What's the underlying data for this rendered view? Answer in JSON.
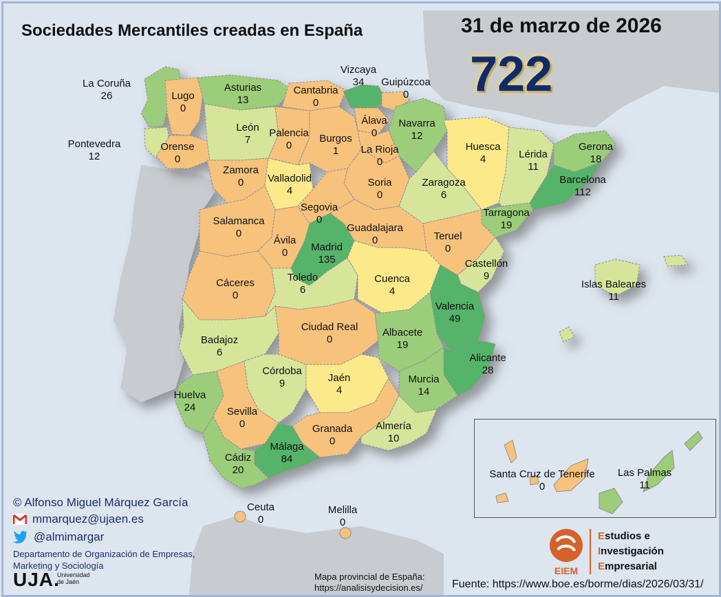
{
  "title": "Sociedades Mercantiles creadas en España",
  "date": "31 de marzo de 2026",
  "total": "722",
  "provinces": [
    {
      "name": "La Coruña",
      "value": "26"
    },
    {
      "name": "Lugo",
      "value": "0"
    },
    {
      "name": "Asturias",
      "value": "13"
    },
    {
      "name": "Cantabria",
      "value": "0"
    },
    {
      "name": "Vizcaya",
      "value": "34"
    },
    {
      "name": "Guipúzcoa",
      "value": "0"
    },
    {
      "name": "Pontevedra",
      "value": "12"
    },
    {
      "name": "León",
      "value": "7"
    },
    {
      "name": "Palencia",
      "value": "0"
    },
    {
      "name": "Burgos",
      "value": "1"
    },
    {
      "name": "Álava",
      "value": "0"
    },
    {
      "name": "Navarra",
      "value": "12"
    },
    {
      "name": "Orense",
      "value": "0"
    },
    {
      "name": "La Rioja",
      "value": "0"
    },
    {
      "name": "Huesca",
      "value": "4"
    },
    {
      "name": "Lérida",
      "value": "11"
    },
    {
      "name": "Gerona",
      "value": "18"
    },
    {
      "name": "Zamora",
      "value": "0"
    },
    {
      "name": "Valladolid",
      "value": "4"
    },
    {
      "name": "Soria",
      "value": "0"
    },
    {
      "name": "Zaragoza",
      "value": "6"
    },
    {
      "name": "Barcelona",
      "value": "112"
    },
    {
      "name": "Segovia",
      "value": "0"
    },
    {
      "name": "Tarragona",
      "value": "19"
    },
    {
      "name": "Salamanca",
      "value": "0"
    },
    {
      "name": "Guadalajara",
      "value": "0"
    },
    {
      "name": "Teruel",
      "value": "0"
    },
    {
      "name": "Ávila",
      "value": "0"
    },
    {
      "name": "Madrid",
      "value": "135"
    },
    {
      "name": "Castellón",
      "value": "9"
    },
    {
      "name": "Cáceres",
      "value": "0"
    },
    {
      "name": "Toledo",
      "value": "6"
    },
    {
      "name": "Cuenca",
      "value": "4"
    },
    {
      "name": "Islas Baleares",
      "value": "11"
    },
    {
      "name": "Valencia",
      "value": "49"
    },
    {
      "name": "Ciudad Real",
      "value": "0"
    },
    {
      "name": "Albacete",
      "value": "19"
    },
    {
      "name": "Badajoz",
      "value": "6"
    },
    {
      "name": "Alicante",
      "value": "28"
    },
    {
      "name": "Córdoba",
      "value": "9"
    },
    {
      "name": "Jaén",
      "value": "4"
    },
    {
      "name": "Murcia",
      "value": "14"
    },
    {
      "name": "Huelva",
      "value": "24"
    },
    {
      "name": "Sevilla",
      "value": "0"
    },
    {
      "name": "Granada",
      "value": "0"
    },
    {
      "name": "Almería",
      "value": "10"
    },
    {
      "name": "Málaga",
      "value": "84"
    },
    {
      "name": "Cádiz",
      "value": "20"
    },
    {
      "name": "Santa Cruz de Tenerife",
      "value": "0"
    },
    {
      "name": "Las Palmas",
      "value": "11"
    },
    {
      "name": "Ceuta",
      "value": "0"
    },
    {
      "name": "Melilla",
      "value": "0"
    }
  ],
  "credits": {
    "author": "© Alfonso Miguel Márquez García",
    "email": "mmarquez@ujaen.es",
    "twitter": "@almimargar",
    "department": "Departamento de Organización de Empresas, Marketing y Sociología",
    "university_logo": "UJA.",
    "university_sub": "Universidad de Jaén"
  },
  "map_note": {
    "line1": "Mapa provincial de España:",
    "line2": "https://analisisydecision.es/"
  },
  "source": "Fuente: https://www.boe.es/borme/dias/2026/03/31/",
  "eiem": {
    "logo_text": "EIEM",
    "line1_cap": "E",
    "line1_rest": "studios e",
    "line2_cap": "I",
    "line2_rest": "nvestigación",
    "line3_cap": "E",
    "line3_rest": "mpresarial"
  },
  "colors": {
    "sea": "#dde5ef",
    "zero": "#f7c27c",
    "low": "#fbe98a",
    "mid": "#d6e59a",
    "high": "#9ccd7a",
    "top": "#57b36b",
    "total_text": "#112a6b",
    "brand_orange": "#d4622a"
  },
  "icons": {
    "email": "gmail-icon",
    "twitter": "twitter-icon"
  }
}
